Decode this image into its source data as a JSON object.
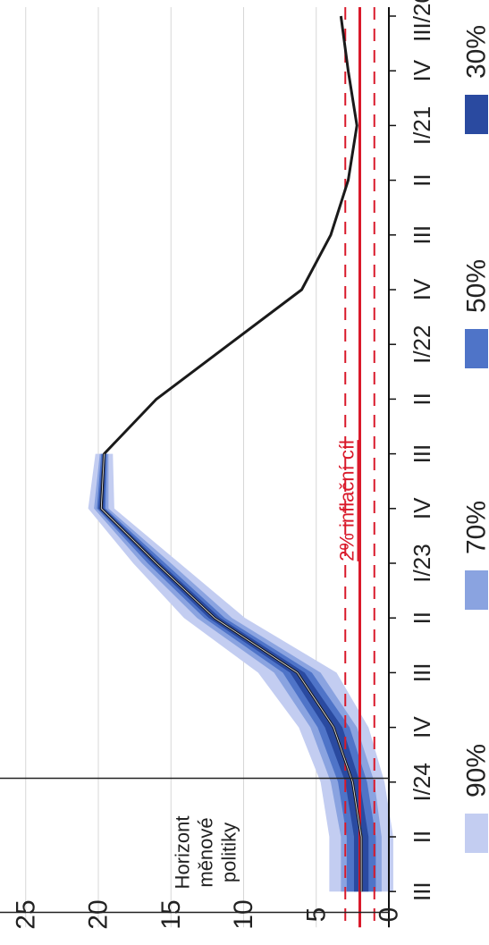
{
  "chart_data": {
    "type": "line",
    "orientation": "rotated-90-clockwise",
    "categories": [
      "III/20",
      "IV",
      "I/21",
      "II",
      "III",
      "IV",
      "I/22",
      "II",
      "III",
      "IV",
      "I/23",
      "II",
      "III",
      "IV",
      "I/24",
      "II",
      "III"
    ],
    "y_ticks": [
      "0",
      "5",
      "10",
      "15",
      "20",
      "25"
    ],
    "ylim": [
      0,
      25
    ],
    "grid": true,
    "series": [
      {
        "values": [
          3.3,
          2.8,
          2.2,
          2.8,
          4.0,
          6.0,
          11.0,
          16.0,
          19.6,
          19.8,
          16.0,
          12.0,
          6.3,
          3.8,
          2.5,
          1.9,
          1.9
        ]
      }
    ],
    "fan_bands": [
      {
        "label": "90%",
        "color": "#c3cdf1",
        "start_index": 8,
        "lower": [
          19.0,
          18.9,
          14.4,
          9.9,
          3.6,
          1.4,
          0.3,
          -0.3,
          -0.3
        ],
        "upper": [
          20.2,
          20.7,
          17.6,
          14.1,
          9.0,
          6.2,
          4.7,
          4.1,
          4.1
        ]
      },
      {
        "label": "70%",
        "color": "#8aa3e0",
        "start_index": 8,
        "lower": [
          19.3,
          19.3,
          15.0,
          10.8,
          4.7,
          2.2,
          1.0,
          0.5,
          0.5
        ],
        "upper": [
          19.9,
          20.3,
          17.0,
          13.2,
          7.9,
          5.4,
          4.0,
          3.3,
          3.3
        ]
      },
      {
        "label": "50%",
        "color": "#4f74c8",
        "start_index": 8,
        "lower": [
          19.4,
          19.5,
          15.4,
          11.3,
          5.3,
          2.7,
          1.5,
          0.9,
          0.9
        ],
        "upper": [
          19.8,
          20.1,
          16.6,
          12.7,
          7.3,
          4.9,
          3.5,
          2.9,
          2.9
        ]
      },
      {
        "label": "30%",
        "color": "#2a4aa0",
        "start_index": 8,
        "lower": [
          19.5,
          19.6,
          15.7,
          11.6,
          5.8,
          3.2,
          2.0,
          1.4,
          1.4
        ],
        "upper": [
          19.7,
          20.0,
          16.3,
          12.4,
          6.8,
          4.4,
          3.0,
          2.4,
          2.4
        ]
      }
    ],
    "target_line": {
      "value": 2,
      "color": "#d9192a"
    },
    "tolerance_band": {
      "lower": 1,
      "upper": 3,
      "color": "#d9192a"
    },
    "target_label": "2% inflační cíl",
    "horizon_label_lines": [
      "Horizont",
      "měnové",
      "politiky"
    ],
    "horizon_indices": [
      13.93,
      16.38
    ],
    "legend": [
      "90%",
      "70%",
      "50%",
      "30%"
    ],
    "legend_position": "bottom",
    "line_color": "#1a1a1a"
  }
}
